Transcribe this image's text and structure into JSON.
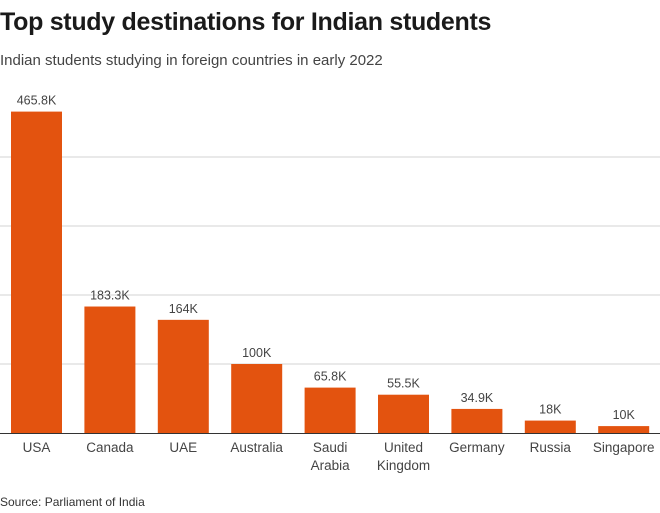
{
  "title": "Top study destinations for Indian students",
  "subtitle": "Indian students studying in foreign countries in early 2022",
  "source": "Source: Parliament of India",
  "colors": {
    "bar": "#e3530f",
    "grid": "#d3d3d3",
    "axis": "#333333"
  },
  "chart_data": {
    "type": "bar",
    "title": "Top study destinations for Indian students",
    "subtitle": "Indian students studying in foreign countries in early 2022",
    "categories": [
      "USA",
      "Canada",
      "UAE",
      "Australia",
      "Saudi Arabia",
      "United Kingdom",
      "Germany",
      "Russia",
      "Singapore"
    ],
    "category_lines": [
      [
        "USA"
      ],
      [
        "Canada"
      ],
      [
        "UAE"
      ],
      [
        "Australia"
      ],
      [
        "Saudi",
        "Arabia"
      ],
      [
        "United",
        "Kingdom"
      ],
      [
        "Germany"
      ],
      [
        "Russia"
      ],
      [
        "Singapore"
      ]
    ],
    "values": [
      465800,
      183300,
      164000,
      100000,
      65800,
      55500,
      34900,
      18000,
      10000
    ],
    "value_labels": [
      "465.8K",
      "183.3K",
      "164K",
      "100K",
      "65.8K",
      "55.5K",
      "34.9K",
      "18K",
      "10K"
    ],
    "ylim": [
      0,
      500000
    ],
    "gridlines": [
      100000,
      200000,
      300000,
      400000
    ],
    "grid": true,
    "xlabel": "",
    "ylabel": ""
  }
}
